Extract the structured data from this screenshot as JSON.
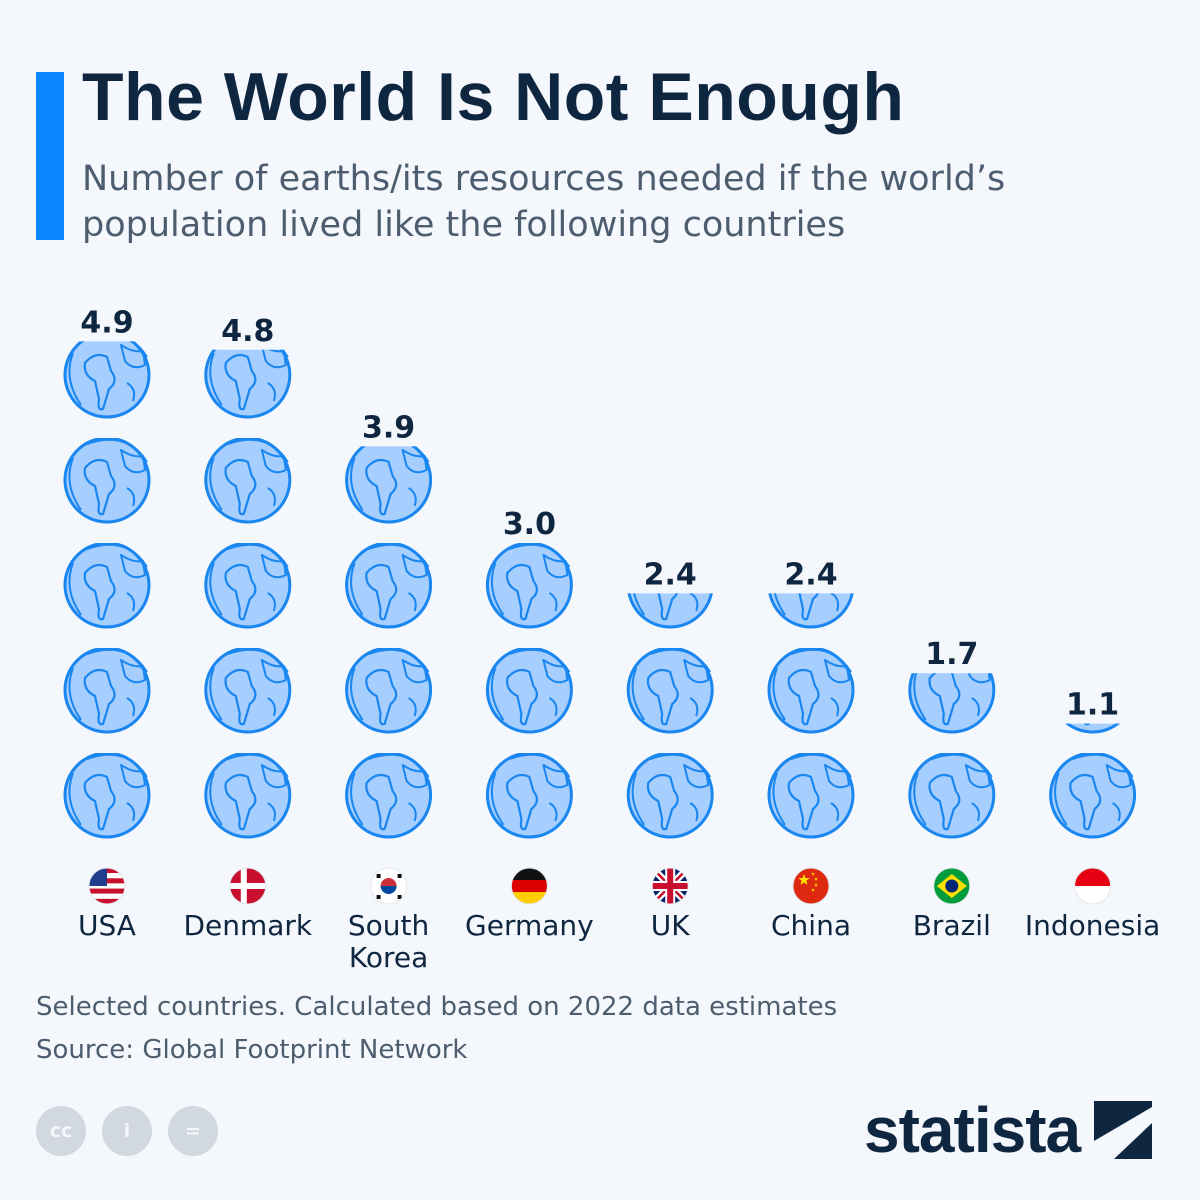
{
  "header": {
    "title": "The World Is Not Enough",
    "subtitle": "Number of earths/its resources needed if the world’s population lived like the following countries"
  },
  "chart_data": {
    "type": "pictogram",
    "title": "The World Is Not Enough",
    "subtitle": "Number of earths/its resources needed if the world’s population lived like the following countries",
    "unit": "earths",
    "categories": [
      "USA",
      "Denmark",
      "South Korea",
      "Germany",
      "UK",
      "China",
      "Brazil",
      "Indonesia"
    ],
    "category_lines": [
      [
        "USA"
      ],
      [
        "Denmark"
      ],
      [
        "South",
        "Korea"
      ],
      [
        "Germany"
      ],
      [
        "UK"
      ],
      [
        "China"
      ],
      [
        "Brazil"
      ],
      [
        "Indonesia"
      ]
    ],
    "values": [
      4.9,
      4.8,
      3.9,
      3.0,
      2.4,
      2.4,
      1.7,
      1.1
    ],
    "value_labels": [
      "4.9",
      "4.8",
      "3.9",
      "3.0",
      "2.4",
      "2.4",
      "1.7",
      "1.1"
    ],
    "flags": [
      "usa-flag",
      "denmark-flag",
      "south-korea-flag",
      "germany-flag",
      "uk-flag",
      "china-flag",
      "brazil-flag",
      "indonesia-flag"
    ],
    "colors": {
      "globe_fill": "#a6cfff",
      "globe_stroke": "#1a86f0",
      "text": "#0f2640"
    }
  },
  "footer": {
    "note": "Selected countries. Calculated based on 2022 data estimates",
    "source": "Source: Global Footprint Network",
    "license_icons": [
      "cc",
      "i",
      "="
    ]
  },
  "brand": {
    "name": "statista"
  }
}
